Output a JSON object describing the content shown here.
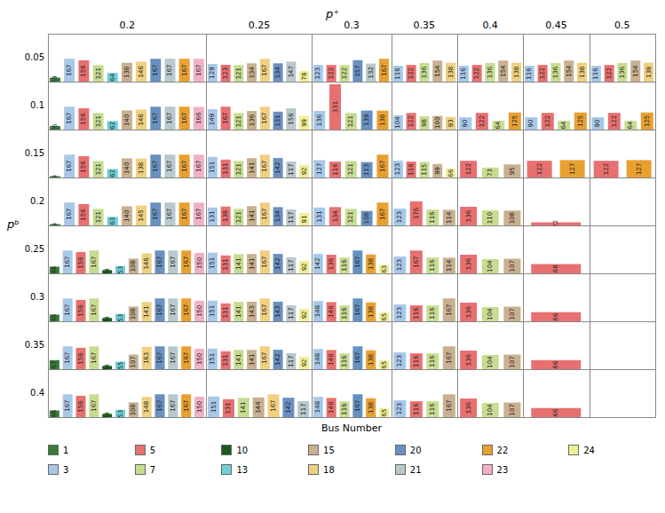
{
  "chart_data": {
    "type": "bar",
    "title": "p⁺",
    "xlabel": "Bus Number",
    "ylabel": "pᵇ",
    "ylim": [
      0,
      350
    ],
    "tick_labels": false,
    "data_labels": true,
    "legend": "bottom",
    "row_labels": [
      "0.05",
      "0.1",
      "0.15",
      "0.2",
      "0.25",
      "0.3",
      "0.35",
      "0.4"
    ],
    "col_labels": [
      "0.2",
      "0.25",
      "0.3",
      "0.35",
      "0.4",
      "0.45",
      "0.5"
    ],
    "series": [
      {
        "name": "1",
        "color": "#3a7a3a",
        "values": [
          [
            29,
            null,
            null,
            null,
            null,
            null,
            null
          ],
          [
            26,
            null,
            null,
            null,
            null,
            null,
            null
          ],
          [
            9,
            null,
            null,
            null,
            null,
            null,
            null
          ],
          [
            9,
            null,
            null,
            null,
            null,
            null,
            null
          ],
          [
            48,
            null,
            null,
            null,
            null,
            null,
            null
          ],
          [
            48,
            null,
            null,
            null,
            null,
            null,
            null
          ],
          [
            67,
            null,
            null,
            null,
            null,
            null,
            null
          ],
          [
            48,
            null,
            null,
            null,
            null,
            null,
            null
          ]
        ]
      },
      {
        "name": "3",
        "color": "#a8c8e8",
        "values": [
          [
            167,
            129,
            123,
            116,
            116,
            116,
            116
          ],
          [
            167,
            149,
            136,
            104,
            90,
            90,
            90
          ],
          [
            167,
            151,
            127,
            123,
            null,
            null,
            null
          ],
          [
            167,
            131,
            131,
            123,
            null,
            null,
            null
          ],
          [
            167,
            151,
            142,
            123,
            null,
            null,
            null
          ],
          [
            167,
            151,
            148,
            123,
            null,
            null,
            null
          ],
          [
            167,
            151,
            148,
            123,
            null,
            null,
            null
          ],
          [
            167,
            151,
            148,
            123,
            null,
            null,
            null
          ]
        ]
      },
      {
        "name": "5",
        "color": "#e87070",
        "values": [
          [
            156,
            123,
            122,
            122,
            122,
            122,
            122
          ],
          [
            156,
            167,
            331,
            122,
            122,
            122,
            122
          ],
          [
            156,
            131,
            116,
            116,
            122,
            122,
            122
          ],
          [
            156,
            138,
            134,
            176,
            136,
            22,
            null
          ],
          [
            156,
            131,
            136,
            167,
            136,
            68,
            null
          ],
          [
            156,
            131,
            140,
            116,
            136,
            66,
            null
          ],
          [
            156,
            131,
            140,
            116,
            136,
            66,
            null
          ],
          [
            156,
            131,
            140,
            116,
            136,
            66,
            null
          ]
        ]
      },
      {
        "name": "7",
        "color": "#c8dc90",
        "values": [
          [
            121,
            121,
            122,
            136,
            136,
            136,
            136
          ],
          [
            121,
            121,
            121,
            98,
            64,
            64,
            64
          ],
          [
            121,
            121,
            121,
            115,
            73,
            null,
            null
          ],
          [
            121,
            121,
            121,
            116,
            110,
            null,
            null
          ],
          [
            167,
            141,
            116,
            116,
            104,
            null,
            null
          ],
          [
            167,
            141,
            116,
            116,
            104,
            null,
            null
          ],
          [
            167,
            141,
            116,
            116,
            104,
            null,
            null
          ],
          [
            167,
            141,
            116,
            116,
            104,
            null,
            null
          ]
        ]
      },
      {
        "name": "10",
        "color": "#1a5c1a",
        "values": [
          [
            null,
            null,
            null,
            null,
            null,
            null,
            null
          ],
          [
            null,
            null,
            null,
            null,
            null,
            null,
            null
          ],
          [
            null,
            null,
            null,
            null,
            null,
            null,
            null
          ],
          [
            null,
            null,
            null,
            null,
            null,
            null,
            null
          ],
          [
            24,
            null,
            null,
            null,
            null,
            null,
            null
          ],
          [
            24,
            null,
            null,
            null,
            null,
            null,
            null
          ],
          [
            24,
            null,
            null,
            null,
            null,
            null,
            null
          ],
          [
            24,
            null,
            null,
            null,
            null,
            null,
            null
          ]
        ]
      },
      {
        "name": "13",
        "color": "#70d0d8",
        "values": [
          [
            64,
            null,
            null,
            null,
            null,
            null,
            null
          ],
          [
            62,
            null,
            null,
            null,
            null,
            null,
            null
          ],
          [
            62,
            null,
            null,
            null,
            null,
            null,
            null
          ],
          [
            63,
            null,
            null,
            null,
            null,
            null,
            null
          ],
          [
            53,
            null,
            null,
            null,
            null,
            null,
            null
          ],
          [
            53,
            null,
            null,
            null,
            null,
            null,
            null
          ],
          [
            55,
            null,
            null,
            null,
            null,
            null,
            null
          ],
          [
            53,
            null,
            null,
            null,
            null,
            null,
            null
          ]
        ]
      },
      {
        "name": "15",
        "color": "#c8b090",
        "values": [
          [
            138,
            134,
            null,
            154,
            154,
            154,
            154
          ],
          [
            140,
            136,
            null,
            100,
            null,
            null,
            null
          ],
          [
            140,
            141,
            null,
            99,
            95,
            null,
            null
          ],
          [
            140,
            141,
            null,
            114,
            108,
            null,
            null
          ],
          [
            108,
            141,
            null,
            114,
            107,
            null,
            null
          ],
          [
            108,
            143,
            null,
            167,
            107,
            null,
            null
          ],
          [
            107,
            141,
            null,
            167,
            107,
            null,
            null
          ],
          [
            108,
            144,
            null,
            167,
            107,
            null,
            null
          ]
        ]
      },
      {
        "name": "18",
        "color": "#f0d080",
        "values": [
          [
            146,
            167,
            null,
            138,
            138,
            138,
            138
          ],
          [
            146,
            167,
            null,
            93,
            null,
            null,
            null
          ],
          [
            138,
            167,
            null,
            null,
            null,
            null,
            null
          ],
          [
            145,
            167,
            null,
            null,
            null,
            null,
            null
          ],
          [
            146,
            167,
            null,
            null,
            null,
            null,
            null
          ],
          [
            141,
            167,
            null,
            null,
            null,
            null,
            null
          ],
          [
            163,
            167,
            null,
            null,
            null,
            null,
            null
          ],
          [
            148,
            167,
            null,
            null,
            null,
            null,
            null
          ]
        ]
      },
      {
        "name": "20",
        "color": "#6890c0",
        "values": [
          [
            167,
            134,
            157,
            null,
            null,
            null,
            null
          ],
          [
            167,
            131,
            139,
            null,
            null,
            null,
            null
          ],
          [
            167,
            142,
            113,
            null,
            null,
            null,
            null
          ],
          [
            167,
            134,
            106,
            null,
            null,
            null,
            null
          ],
          [
            167,
            142,
            167,
            null,
            null,
            null,
            null
          ],
          [
            167,
            143,
            167,
            null,
            null,
            null,
            null
          ],
          [
            167,
            142,
            167,
            null,
            null,
            null,
            null
          ],
          [
            167,
            142,
            167,
            null,
            null,
            null,
            null
          ]
        ]
      },
      {
        "name": "21",
        "color": "#b8c8cc",
        "values": [
          [
            167,
            147,
            132,
            null,
            null,
            null,
            null
          ],
          [
            167,
            156,
            null,
            null,
            null,
            null,
            null
          ],
          [
            167,
            117,
            null,
            null,
            null,
            null,
            null
          ],
          [
            167,
            117,
            null,
            null,
            null,
            null,
            null
          ],
          [
            167,
            117,
            null,
            null,
            null,
            null,
            null
          ],
          [
            167,
            117,
            null,
            null,
            null,
            null,
            null
          ],
          [
            167,
            117,
            null,
            null,
            null,
            null,
            null
          ],
          [
            167,
            117,
            null,
            null,
            null,
            null,
            null
          ]
        ]
      },
      {
        "name": "22",
        "color": "#e8a030",
        "values": [
          [
            167,
            null,
            167,
            null,
            null,
            null,
            null
          ],
          [
            167,
            null,
            138,
            null,
            125,
            125,
            125
          ],
          [
            167,
            null,
            167,
            null,
            null,
            127,
            127
          ],
          [
            167,
            null,
            167,
            null,
            null,
            null,
            null
          ],
          [
            167,
            null,
            138,
            null,
            null,
            null,
            null
          ],
          [
            167,
            null,
            138,
            null,
            null,
            null,
            null
          ],
          [
            167,
            null,
            138,
            null,
            null,
            null,
            null
          ],
          [
            167,
            null,
            138,
            null,
            null,
            null,
            null
          ]
        ]
      },
      {
        "name": "23",
        "color": "#f0b0c8",
        "values": [
          [
            167,
            null,
            null,
            null,
            null,
            null,
            null
          ],
          [
            166,
            null,
            null,
            null,
            null,
            null,
            null
          ],
          [
            167,
            null,
            null,
            null,
            null,
            null,
            null
          ],
          [
            167,
            null,
            null,
            null,
            null,
            null,
            null
          ],
          [
            150,
            null,
            null,
            null,
            null,
            null,
            null
          ],
          [
            150,
            null,
            null,
            null,
            null,
            null,
            null
          ],
          [
            150,
            null,
            null,
            null,
            null,
            null,
            null
          ],
          [
            150,
            null,
            null,
            null,
            null,
            null,
            null
          ]
        ]
      },
      {
        "name": "24",
        "color": "#f0f090",
        "values": [
          [
            null,
            78,
            null,
            null,
            null,
            null,
            null
          ],
          [
            null,
            99,
            null,
            null,
            null,
            null,
            null
          ],
          [
            null,
            92,
            null,
            66,
            null,
            null,
            null
          ],
          [
            null,
            91,
            null,
            null,
            null,
            null,
            null
          ],
          [
            null,
            92,
            63,
            null,
            null,
            null,
            null
          ],
          [
            null,
            92,
            65,
            null,
            null,
            null,
            null
          ],
          [
            null,
            92,
            65,
            null,
            null,
            null,
            null
          ],
          [
            null,
            null,
            65,
            null,
            null,
            null,
            null
          ]
        ]
      }
    ]
  }
}
